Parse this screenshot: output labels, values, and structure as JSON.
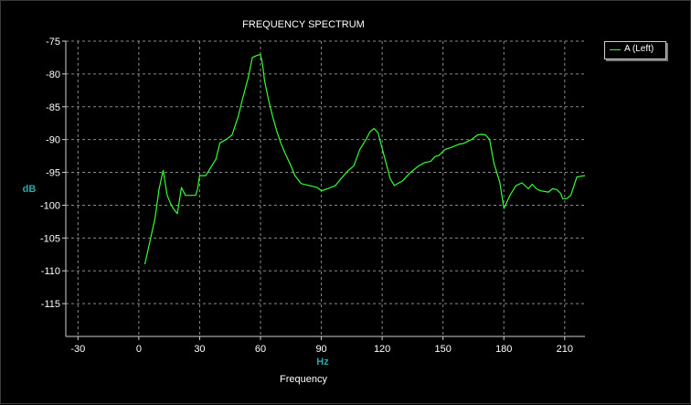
{
  "chart_data": {
    "type": "line",
    "title": "FREQUENCY SPECTRUM",
    "xlabel": "Hz",
    "ylabel": "dB",
    "footer": "Frequency",
    "legend": {
      "entry": "A (Left)",
      "placement": "top-right"
    },
    "xlim": [
      -36,
      220
    ],
    "ylim": [
      -120,
      -75
    ],
    "x_ticks": [
      -30,
      0,
      30,
      60,
      90,
      120,
      150,
      180,
      210
    ],
    "y_ticks": [
      -75,
      -80,
      -85,
      -90,
      -95,
      -100,
      -105,
      -110,
      -115
    ],
    "grid": true,
    "colors": {
      "series": "#33ff33",
      "grid": "#8a8a8a",
      "axis_label": "#2aa7a7",
      "text": "#ffffff"
    },
    "series": [
      {
        "name": "A (Left)",
        "x": [
          3,
          8,
          10,
          12,
          14,
          16,
          17,
          19,
          21,
          23,
          28,
          29,
          30,
          33,
          35,
          38,
          40,
          43,
          46,
          49,
          51,
          54,
          56,
          58,
          60,
          61,
          62,
          64,
          66,
          68,
          70,
          72,
          75,
          77,
          80,
          84,
          88,
          90,
          93,
          97,
          99,
          103,
          106,
          109,
          112,
          114,
          116,
          118,
          121,
          124,
          126,
          130,
          134,
          138,
          141,
          144,
          146,
          148,
          151,
          154,
          158,
          160,
          164,
          167,
          169,
          171,
          173,
          175,
          178,
          180,
          183,
          186,
          189,
          192,
          194,
          196,
          198,
          200,
          202,
          204,
          206,
          208,
          209,
          211,
          213,
          216,
          220
        ],
        "y": [
          -109,
          -102,
          -97.5,
          -94.7,
          -98.5,
          -100,
          -100.5,
          -101.3,
          -97.3,
          -98.5,
          -98.5,
          -97.5,
          -95.5,
          -95.5,
          -94.5,
          -93,
          -90.5,
          -90,
          -89.3,
          -86.5,
          -84,
          -80.5,
          -77.5,
          -77.2,
          -77,
          -78.5,
          -81,
          -84,
          -86.5,
          -88.7,
          -90.5,
          -92,
          -94,
          -95.5,
          -96.7,
          -97,
          -97.3,
          -97.8,
          -97.5,
          -97,
          -96.2,
          -94.8,
          -94,
          -91.5,
          -90,
          -88.8,
          -88.3,
          -89,
          -92.5,
          -96,
          -97,
          -96.3,
          -95,
          -94,
          -93.5,
          -93.3,
          -92.6,
          -92.4,
          -91.5,
          -91.2,
          -90.7,
          -90.6,
          -90,
          -89.3,
          -89.2,
          -89.3,
          -90,
          -93.5,
          -96.5,
          -100.5,
          -98.5,
          -97,
          -96.6,
          -97.5,
          -96.8,
          -97.5,
          -97.8,
          -97.9,
          -98,
          -97.5,
          -97.6,
          -98.2,
          -99,
          -99,
          -98.5,
          -95.7,
          -95.5
        ]
      }
    ]
  }
}
